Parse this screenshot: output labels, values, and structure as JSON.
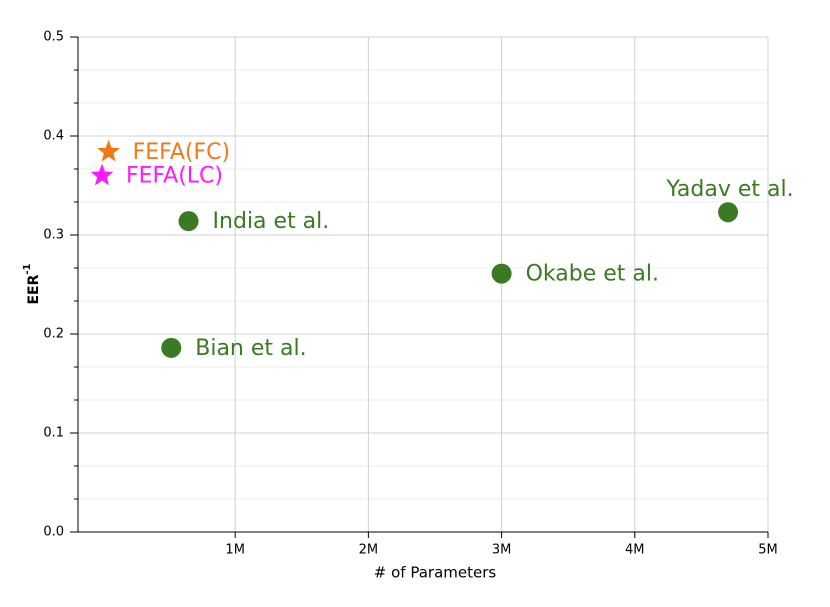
{
  "chart_data": {
    "type": "scatter",
    "xlabel": "# of Parameters",
    "ylabel": "EER",
    "ylabel_sup": "-1",
    "xlim": [
      -0.18,
      5
    ],
    "ylim": [
      0,
      0.5
    ],
    "xticks": [
      {
        "value": 1,
        "label": "1M"
      },
      {
        "value": 2,
        "label": "2M"
      },
      {
        "value": 3,
        "label": "3M"
      },
      {
        "value": 4,
        "label": "4M"
      },
      {
        "value": 5,
        "label": "5M"
      }
    ],
    "yticks": [
      {
        "value": 0,
        "label": "0.0"
      },
      0.1,
      0.2,
      0.3,
      0.4,
      0.5
    ],
    "grid": true,
    "points": [
      {
        "name": "FEFA(FC)",
        "x": 0.05,
        "y": 0.384,
        "color": "#f07a1a",
        "marker": "star",
        "label_position": "right"
      },
      {
        "name": "FEFA(LC)",
        "x": 0.0,
        "y": 0.36,
        "color": "#ff1aff",
        "marker": "star",
        "label_position": "right"
      },
      {
        "name": "India et al.",
        "x": 0.65,
        "y": 0.314,
        "color": "#3a7a22",
        "marker": "circle",
        "label_position": "right"
      },
      {
        "name": "Bian et al.",
        "x": 0.52,
        "y": 0.186,
        "color": "#3a7a22",
        "marker": "circle",
        "label_position": "right"
      },
      {
        "name": "Okabe et al.",
        "x": 3.0,
        "y": 0.261,
        "color": "#3a7a22",
        "marker": "circle",
        "label_position": "right"
      },
      {
        "name": "Yadav et al.",
        "x": 4.7,
        "y": 0.323,
        "color": "#3a7a22",
        "marker": "circle",
        "label_position": "above"
      }
    ]
  }
}
